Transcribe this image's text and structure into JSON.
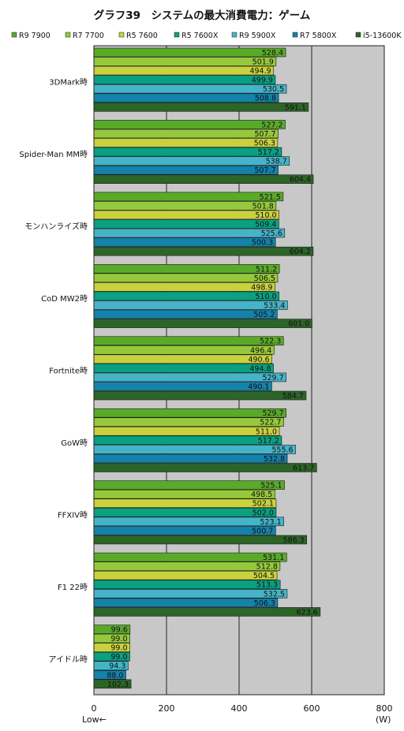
{
  "chart_data": {
    "type": "bar",
    "orientation": "horizontal",
    "title": "グラフ39　システムの最大消費電力：ゲーム",
    "xlabel_low": "Low←",
    "xunit": "(W)",
    "xlim": [
      0,
      800
    ],
    "xticks": [
      0,
      200,
      400,
      600,
      800
    ],
    "grid": true,
    "legend_position": "top",
    "plot_background": "#c8c8c8",
    "categories": [
      "3DMark時",
      "Spider-Man MM時",
      "モンハンライズ時",
      "CoD MW2時",
      "Fortnite時",
      "GoW時",
      "FFXIV時",
      "F1 22時",
      "アイドル時"
    ],
    "series": [
      {
        "name": "R9 7900",
        "color": "#5aaa2a",
        "values": [
          528.4,
          527.2,
          521.5,
          511.2,
          522.3,
          529.7,
          525.1,
          531.1,
          99.6
        ]
      },
      {
        "name": "R7 7700",
        "color": "#96c83c",
        "values": [
          501.9,
          507.7,
          501.8,
          506.5,
          496.4,
          522.7,
          498.5,
          512.8,
          99.0
        ]
      },
      {
        "name": "R5 7600",
        "color": "#c8d23c",
        "values": [
          494.9,
          506.3,
          510.0,
          498.9,
          490.6,
          511.0,
          502.1,
          504.5,
          99.0
        ]
      },
      {
        "name": "R5 7600X",
        "color": "#0aa082",
        "values": [
          499.9,
          517.2,
          509.4,
          510.0,
          494.8,
          517.2,
          502.0,
          513.3,
          99.0
        ]
      },
      {
        "name": "R9 5900X",
        "color": "#46b4c8",
        "values": [
          530.5,
          538.7,
          525.6,
          533.4,
          529.7,
          555.6,
          523.1,
          532.5,
          94.3
        ]
      },
      {
        "name": "R7 5800X",
        "color": "#1482aa",
        "values": [
          508.8,
          507.7,
          500.3,
          505.2,
          490.1,
          532.8,
          500.7,
          506.3,
          88.0
        ]
      },
      {
        "name": "i5-13600K",
        "color": "#2d6428",
        "values": [
          591.1,
          604.4,
          604.2,
          601.0,
          584.7,
          613.7,
          586.3,
          623.6,
          102.3
        ]
      }
    ]
  }
}
